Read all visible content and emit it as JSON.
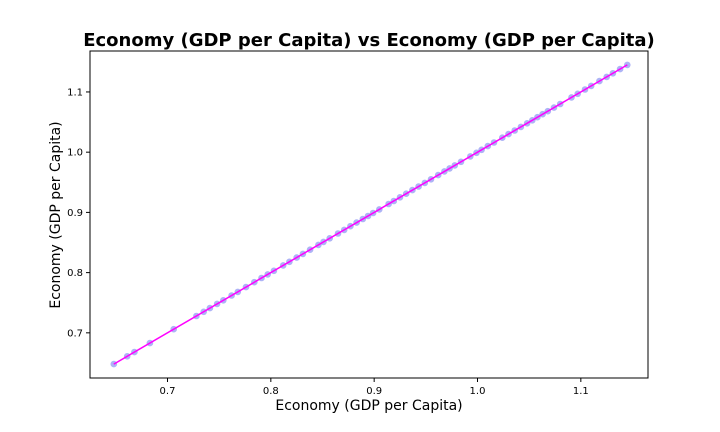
{
  "chart_data": {
    "type": "scatter",
    "title": "Economy (GDP per Capita) vs Economy (GDP per Capita)",
    "xlabel": "Economy (GDP per Capita)",
    "ylabel": "Economy (GDP per Capita)",
    "xlim": [
      0.625,
      1.165
    ],
    "ylim": [
      0.625,
      1.168
    ],
    "xticks": [
      0.7,
      0.8,
      0.9,
      1.0,
      1.1
    ],
    "xtick_labels": [
      "0.7",
      "0.8",
      "0.9",
      "1.0",
      "1.1"
    ],
    "yticks": [
      0.7,
      0.8,
      0.9,
      1.0,
      1.1
    ],
    "ytick_labels": [
      "0.7",
      "0.8",
      "0.9",
      "1.0",
      "1.1"
    ],
    "grid": false,
    "point_color": "#a0a6f5",
    "line_color": "#ff00ff",
    "fit_line": {
      "x": [
        0.648,
        1.145
      ],
      "y": [
        0.648,
        1.145
      ]
    },
    "series": [
      {
        "x": [
          0.648,
          0.661,
          0.668,
          0.683,
          0.706,
          0.728,
          0.735,
          0.741,
          0.748,
          0.754,
          0.762,
          0.768,
          0.776,
          0.784,
          0.791,
          0.797,
          0.803,
          0.812,
          0.818,
          0.825,
          0.831,
          0.838,
          0.846,
          0.851,
          0.857,
          0.865,
          0.871,
          0.877,
          0.883,
          0.889,
          0.894,
          0.899,
          0.905,
          0.914,
          0.919,
          0.925,
          0.931,
          0.937,
          0.943,
          0.949,
          0.955,
          0.962,
          0.968,
          0.973,
          0.978,
          0.984,
          0.993,
          0.999,
          1.004,
          1.01,
          1.016,
          1.024,
          1.03,
          1.036,
          1.042,
          1.048,
          1.053,
          1.058,
          1.063,
          1.068,
          1.074,
          1.08,
          1.091,
          1.097,
          1.104,
          1.11,
          1.118,
          1.125,
          1.131,
          1.138,
          1.145
        ],
        "y": [
          0.648,
          0.661,
          0.668,
          0.683,
          0.706,
          0.728,
          0.735,
          0.741,
          0.748,
          0.754,
          0.762,
          0.768,
          0.776,
          0.784,
          0.791,
          0.797,
          0.803,
          0.812,
          0.818,
          0.825,
          0.831,
          0.838,
          0.846,
          0.851,
          0.857,
          0.865,
          0.871,
          0.877,
          0.883,
          0.889,
          0.894,
          0.899,
          0.905,
          0.914,
          0.919,
          0.925,
          0.931,
          0.937,
          0.943,
          0.949,
          0.955,
          0.962,
          0.968,
          0.973,
          0.978,
          0.984,
          0.993,
          0.999,
          1.004,
          1.01,
          1.016,
          1.024,
          1.03,
          1.036,
          1.042,
          1.048,
          1.053,
          1.058,
          1.063,
          1.068,
          1.074,
          1.08,
          1.091,
          1.097,
          1.104,
          1.11,
          1.118,
          1.125,
          1.131,
          1.138,
          1.145
        ]
      }
    ]
  }
}
